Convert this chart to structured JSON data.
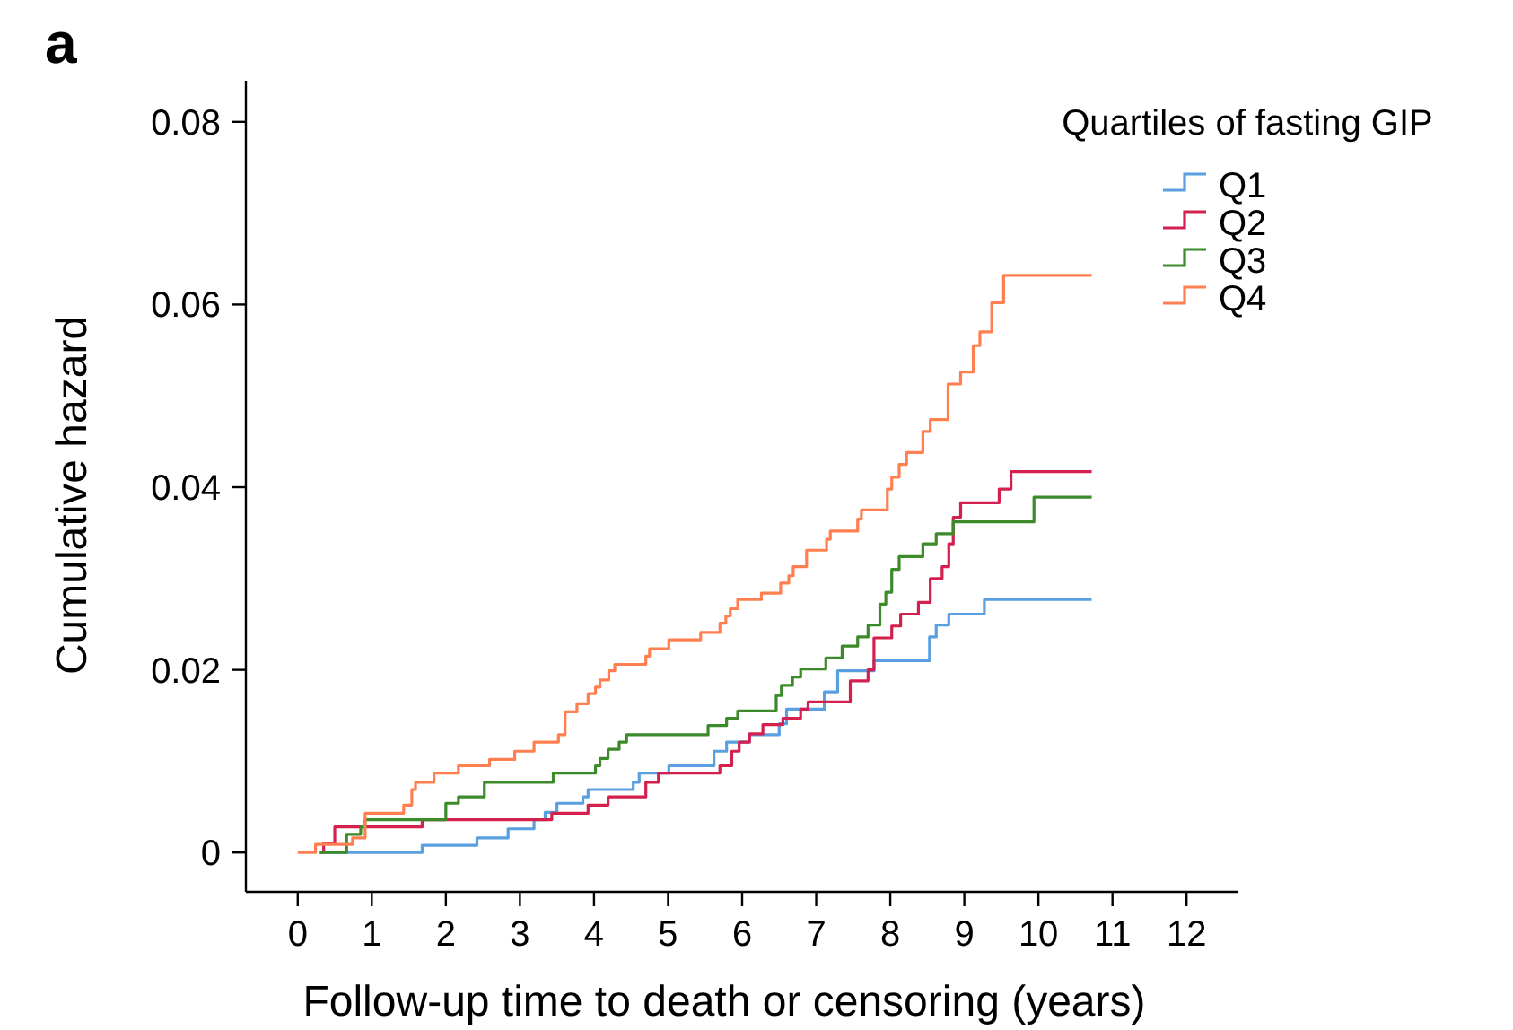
{
  "chart_data": {
    "type": "step",
    "xlabel": "Follow-up time to death or censoring (years)",
    "ylabel": "Cumulative hazard",
    "legend_title": "Quartiles of fasting GIP",
    "annotations": [
      "a"
    ],
    "xlim": [
      -0.7,
      12.7
    ],
    "ylim": [
      -0.0043,
      0.0845
    ],
    "xticks": [
      0,
      1,
      2,
      3,
      4,
      5,
      6,
      7,
      8,
      9,
      10,
      11,
      12
    ],
    "yticks": [
      0,
      0.02,
      0.04,
      0.06,
      0.08
    ],
    "grid": false,
    "legend": "top right",
    "line_style": "solid",
    "marker": "none",
    "series": [
      {
        "name": "Q1",
        "color": "#5a9fe0",
        "x": [
          0.3,
          1.68,
          2.42,
          2.84,
          3.19,
          3.34,
          3.5,
          3.85,
          3.92,
          4.53,
          4.61,
          5.01,
          5.62,
          5.79,
          6.1,
          6.5,
          6.6,
          7.11,
          7.29,
          7.78,
          8.53,
          8.62,
          8.79,
          9.27,
          10.72
        ],
        "values": [
          0,
          0.0008,
          0.0016,
          0.0026,
          0.0036,
          0.0044,
          0.0054,
          0.0061,
          0.0069,
          0.0077,
          0.0087,
          0.0095,
          0.0111,
          0.0121,
          0.0129,
          0.0141,
          0.0157,
          0.0176,
          0.0199,
          0.021,
          0.0236,
          0.0249,
          0.0261,
          0.0277,
          0.0277
        ]
      },
      {
        "name": "Q2",
        "color": "#d3204f",
        "x": [
          0.3,
          0.35,
          0.5,
          1.68,
          3.43,
          3.92,
          4.19,
          4.7,
          4.87,
          5.7,
          5.86,
          5.96,
          6.1,
          6.28,
          6.55,
          6.79,
          6.89,
          7.46,
          7.7,
          7.78,
          8.02,
          8.14,
          8.38,
          8.54,
          8.7,
          8.79,
          8.85,
          8.95,
          9.47,
          9.63,
          10.72
        ],
        "values": [
          0,
          0.001,
          0.0028,
          0.0036,
          0.0043,
          0.0052,
          0.0061,
          0.0077,
          0.0087,
          0.0095,
          0.0111,
          0.0121,
          0.013,
          0.014,
          0.0147,
          0.0157,
          0.0165,
          0.0188,
          0.02,
          0.0235,
          0.0248,
          0.0261,
          0.0274,
          0.03,
          0.0313,
          0.0338,
          0.0367,
          0.0383,
          0.0398,
          0.0417,
          0.0417
        ]
      },
      {
        "name": "Q3",
        "color": "#3d8a2a",
        "x": [
          0.3,
          0.66,
          0.85,
          0.91,
          2.0,
          2.17,
          2.52,
          3.45,
          4.02,
          4.08,
          4.19,
          4.34,
          4.44,
          5.54,
          5.79,
          5.94,
          6.46,
          6.53,
          6.68,
          6.79,
          7.13,
          7.35,
          7.56,
          7.7,
          7.86,
          7.94,
          8.02,
          8.12,
          8.44,
          8.62,
          8.85,
          9.94,
          10.72
        ],
        "values": [
          0,
          0.002,
          0.0028,
          0.0036,
          0.0054,
          0.0061,
          0.0077,
          0.0087,
          0.0095,
          0.0103,
          0.0113,
          0.0121,
          0.0129,
          0.0139,
          0.0147,
          0.0155,
          0.0172,
          0.0183,
          0.0192,
          0.0201,
          0.0213,
          0.0226,
          0.0236,
          0.0249,
          0.0272,
          0.0285,
          0.031,
          0.0324,
          0.0338,
          0.0349,
          0.0362,
          0.0389,
          0.0389
        ]
      },
      {
        "name": "Q4",
        "color": "#ff7f50",
        "x": [
          0,
          0.24,
          0.74,
          0.91,
          1.43,
          1.54,
          1.59,
          1.84,
          2.17,
          2.59,
          2.93,
          3.19,
          3.52,
          3.61,
          3.77,
          3.92,
          4.02,
          4.08,
          4.2,
          4.28,
          4.7,
          4.75,
          5.01,
          5.44,
          5.7,
          5.78,
          5.84,
          5.94,
          6.26,
          6.52,
          6.63,
          6.69,
          6.87,
          7.14,
          7.19,
          7.56,
          7.61,
          7.96,
          8.02,
          8.12,
          8.22,
          8.44,
          8.54,
          8.78,
          8.95,
          9.12,
          9.21,
          9.37,
          9.53,
          10.72
        ],
        "values": [
          0,
          0.0009,
          0.0016,
          0.0043,
          0.0052,
          0.0069,
          0.0077,
          0.0087,
          0.0095,
          0.0102,
          0.0111,
          0.0121,
          0.0129,
          0.0154,
          0.0163,
          0.0174,
          0.0181,
          0.0189,
          0.0199,
          0.0206,
          0.0215,
          0.0223,
          0.0233,
          0.0241,
          0.0251,
          0.0259,
          0.0267,
          0.0277,
          0.0284,
          0.0295,
          0.0303,
          0.0313,
          0.0331,
          0.0343,
          0.0352,
          0.0365,
          0.0375,
          0.0398,
          0.0411,
          0.0425,
          0.0438,
          0.0461,
          0.0474,
          0.0513,
          0.0526,
          0.0555,
          0.057,
          0.0602,
          0.0632,
          0.0632
        ]
      }
    ]
  }
}
